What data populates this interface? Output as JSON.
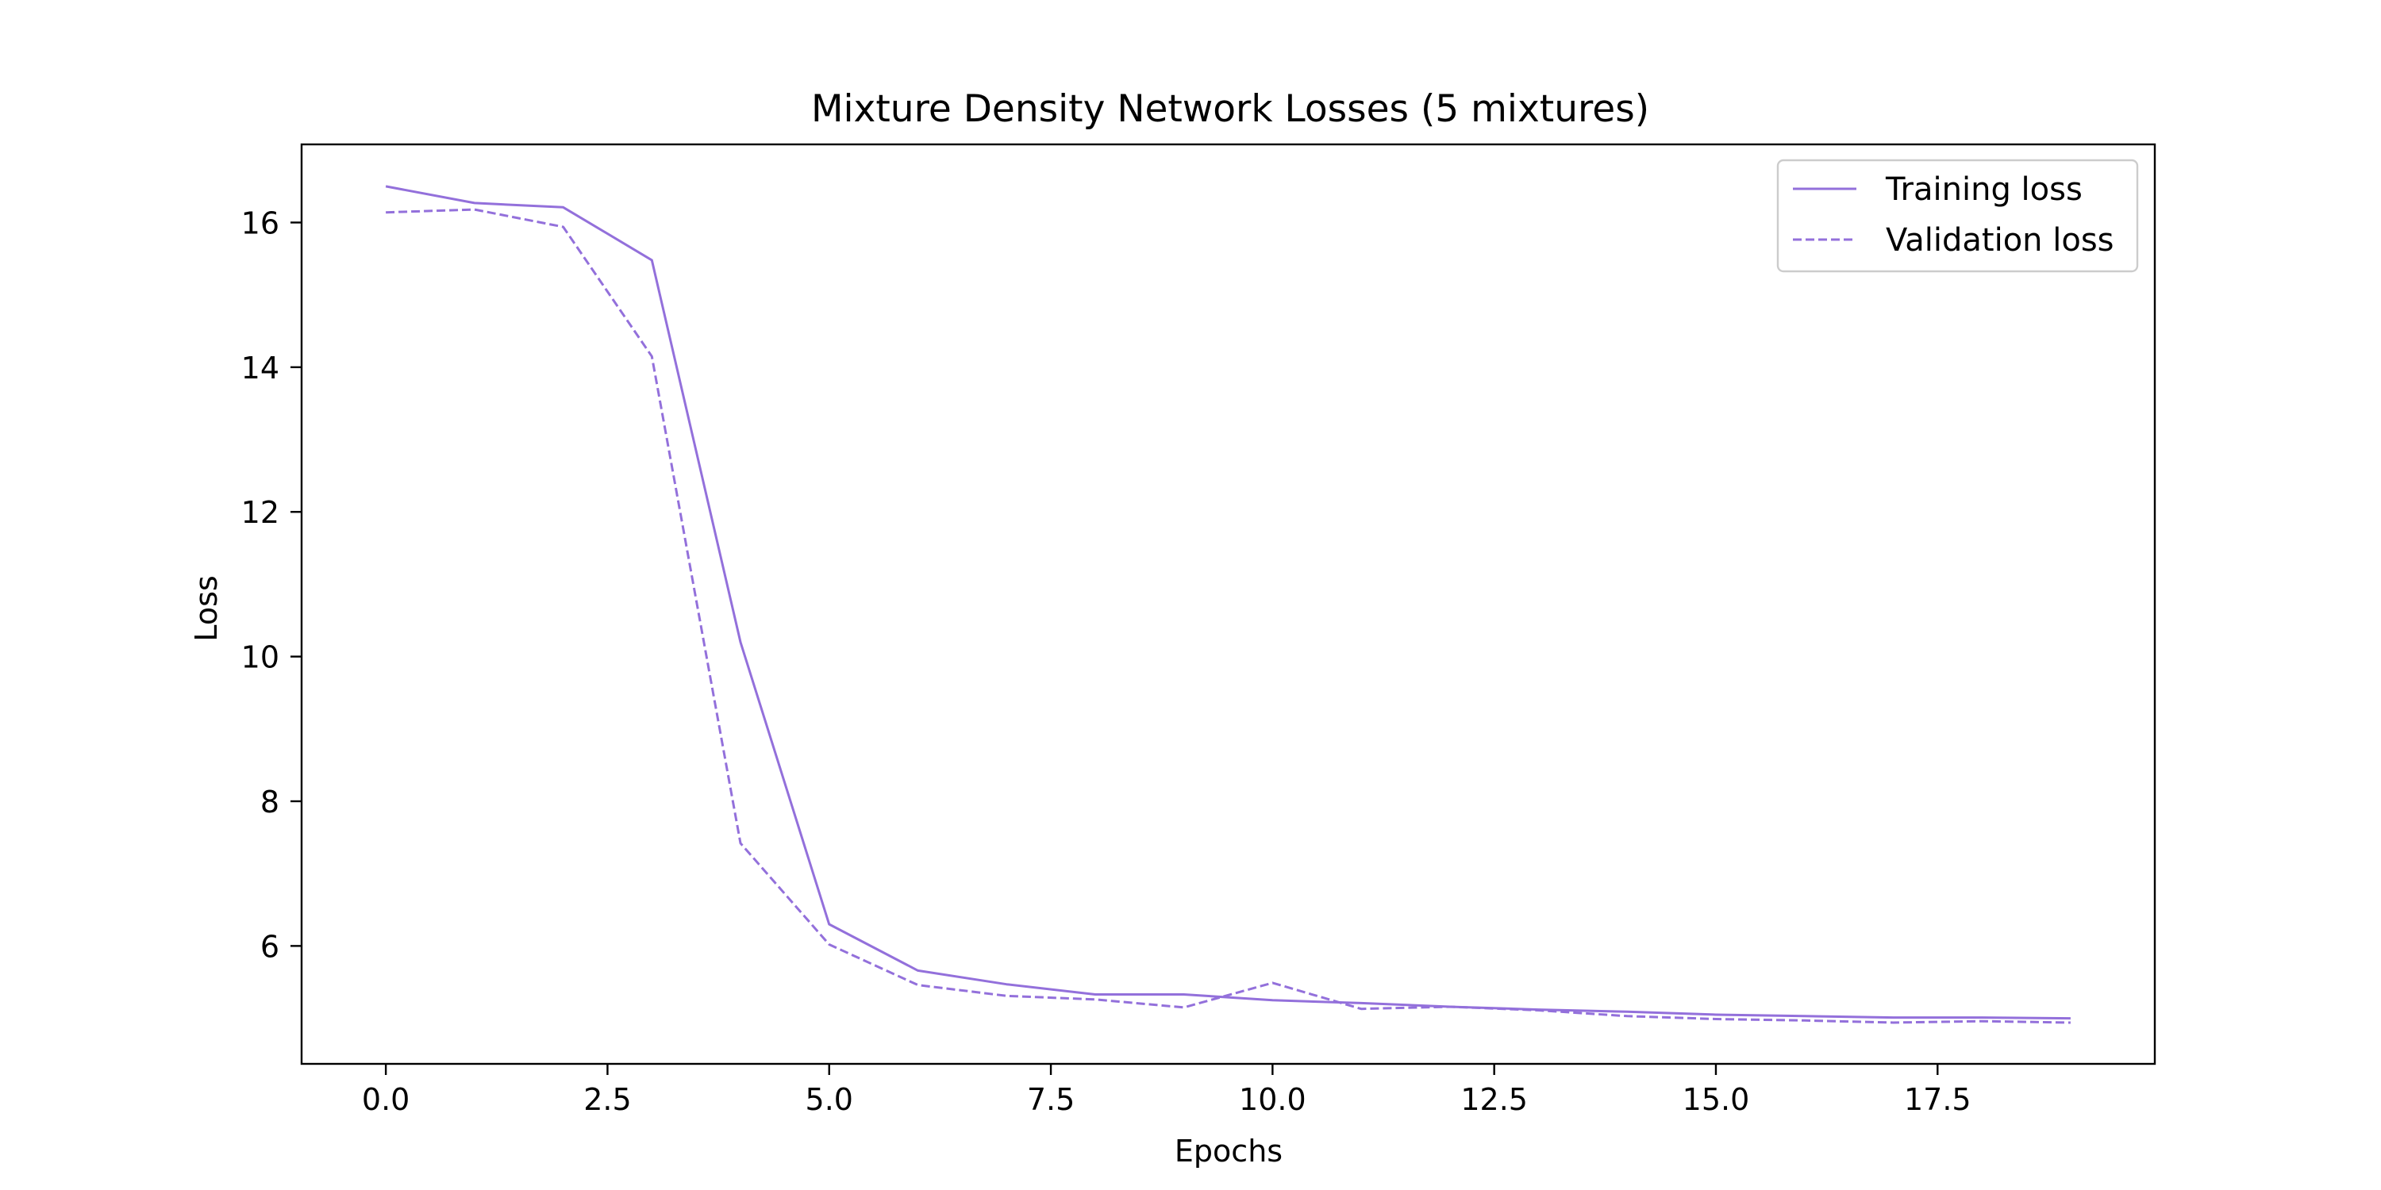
{
  "chart_data": {
    "type": "line",
    "title": "Mixture Density Network Losses (5 mixtures)",
    "xlabel": "Epochs",
    "ylabel": "Loss",
    "xlim": [
      -0.95,
      19.95
    ],
    "ylim": [
      4.37,
      17.08
    ],
    "xticks": [
      0,
      2.5,
      5,
      7.5,
      10,
      12.5,
      15,
      17.5
    ],
    "xtick_labels": [
      "0.0",
      "2.5",
      "5.0",
      "7.5",
      "10.0",
      "12.5",
      "15.0",
      "17.5"
    ],
    "yticks": [
      6,
      8,
      10,
      12,
      14,
      16
    ],
    "ytick_labels": [
      "6",
      "8",
      "10",
      "12",
      "14",
      "16"
    ],
    "grid": false,
    "legend_position": "top-right",
    "x": [
      0,
      1,
      2,
      3,
      4,
      5,
      6,
      7,
      8,
      9,
      10,
      11,
      12,
      13,
      14,
      15,
      16,
      17,
      18,
      19
    ],
    "series": [
      {
        "name": "Training loss",
        "style": "solid",
        "color": "#9370DB",
        "values": [
          16.5,
          16.27,
          16.21,
          15.48,
          10.2,
          6.3,
          5.66,
          5.47,
          5.33,
          5.33,
          5.25,
          5.21,
          5.16,
          5.12,
          5.09,
          5.05,
          5.03,
          5.01,
          5.01,
          5.0
        ]
      },
      {
        "name": "Validation loss",
        "style": "dashed",
        "color": "#9370DB",
        "values": [
          16.14,
          16.18,
          15.94,
          14.15,
          7.42,
          6.02,
          5.46,
          5.31,
          5.26,
          5.15,
          5.49,
          5.13,
          5.16,
          5.11,
          5.03,
          4.99,
          4.97,
          4.94,
          4.96,
          4.94
        ]
      }
    ]
  }
}
